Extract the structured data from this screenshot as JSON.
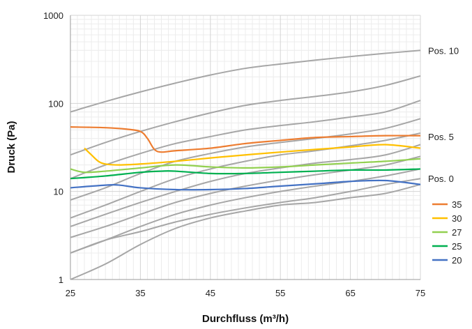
{
  "chart_data": {
    "type": "line",
    "xlabel": "Durchfluss (m³/h)",
    "ylabel": "Druck (Pa)",
    "x_scale": "linear",
    "y_scale": "log",
    "xlim": [
      25,
      75
    ],
    "ylim": [
      1,
      1000
    ],
    "x_ticks": [
      "25",
      "35",
      "45",
      "55",
      "65",
      "75"
    ],
    "y_ticks": [
      "1",
      "10",
      "100",
      "1000"
    ],
    "grid": true,
    "legend_position": "right",
    "position_labels": [
      {
        "text": "Pos. 10",
        "y": 400
      },
      {
        "text": "Pos. 5",
        "y": 42
      },
      {
        "text": "Pos. 0",
        "y": 14
      }
    ],
    "position_curves": {
      "color": "#a6a6a6",
      "x": [
        25,
        30,
        35,
        40,
        45,
        50,
        55,
        60,
        65,
        70,
        75
      ],
      "series": [
        {
          "values": [
            80,
            105,
            135,
            170,
            210,
            250,
            280,
            310,
            340,
            370,
            400
          ]
        },
        {
          "values": [
            26,
            36,
            48,
            62,
            78,
            95,
            108,
            120,
            135,
            160,
            205
          ]
        },
        {
          "values": [
            14,
            20,
            27,
            35,
            42,
            50,
            56,
            62,
            70,
            80,
            108
          ]
        },
        {
          "values": [
            8,
            11,
            16,
            22,
            27,
            32,
            36,
            40,
            45,
            52,
            67
          ]
        },
        {
          "values": [
            5,
            7,
            10,
            14,
            18,
            22,
            26,
            29,
            33,
            38,
            46
          ]
        },
        {
          "values": [
            4,
            5.5,
            7.5,
            10,
            13,
            16,
            18.5,
            21,
            23,
            26,
            34
          ]
        },
        {
          "values": [
            3,
            4,
            5.5,
            7.5,
            9.5,
            11.5,
            13.5,
            15.5,
            17.5,
            20,
            25
          ]
        },
        {
          "values": [
            2,
            2.8,
            4,
            5.5,
            7,
            8.5,
            10,
            11.5,
            13,
            15,
            18
          ]
        },
        {
          "values": [
            2,
            2.8,
            3.5,
            4.5,
            5.5,
            6.5,
            7.5,
            8.5,
            10,
            12,
            14
          ]
        },
        {
          "values": [
            1,
            1.5,
            2.5,
            3.8,
            5,
            6,
            7,
            7.5,
            8.5,
            9.5,
            12
          ]
        }
      ]
    },
    "series": [
      {
        "name": "35",
        "color": "#ed7d31",
        "x": [
          25,
          30,
          33,
          35,
          36,
          37,
          38,
          40,
          45,
          50,
          55,
          60,
          65,
          70,
          75
        ],
        "values": [
          54,
          53,
          51,
          48,
          40,
          30,
          28,
          29,
          31,
          35,
          38,
          41,
          42,
          43,
          43
        ]
      },
      {
        "name": "30",
        "color": "#ffc000",
        "x": [
          27,
          28,
          29,
          30,
          32,
          35,
          40,
          45,
          50,
          55,
          60,
          65,
          70,
          75
        ],
        "values": [
          31,
          26,
          22,
          20.5,
          20,
          20.5,
          22,
          24,
          26,
          28,
          30,
          32,
          34,
          31
        ]
      },
      {
        "name": "27",
        "color": "#92d050",
        "x": [
          25,
          27,
          30,
          35,
          40,
          45,
          50,
          55,
          60,
          65,
          70,
          75
        ],
        "values": [
          18,
          16.5,
          17,
          18.5,
          20,
          19,
          18.5,
          19,
          20,
          21,
          22,
          23.5
        ]
      },
      {
        "name": "25",
        "color": "#00b050",
        "x": [
          25,
          30,
          35,
          38,
          40,
          45,
          50,
          55,
          60,
          65,
          70,
          75
        ],
        "values": [
          14,
          15,
          16.5,
          17,
          17,
          16,
          16,
          16.5,
          17,
          17.5,
          17.5,
          18
        ]
      },
      {
        "name": "20",
        "color": "#4472c4",
        "x": [
          25,
          30,
          32,
          35,
          40,
          45,
          50,
          55,
          60,
          65,
          70,
          75
        ],
        "values": [
          11,
          11.8,
          11.8,
          11,
          10.5,
          10.5,
          10.8,
          11.5,
          12.2,
          13,
          13.3,
          12
        ]
      }
    ]
  }
}
